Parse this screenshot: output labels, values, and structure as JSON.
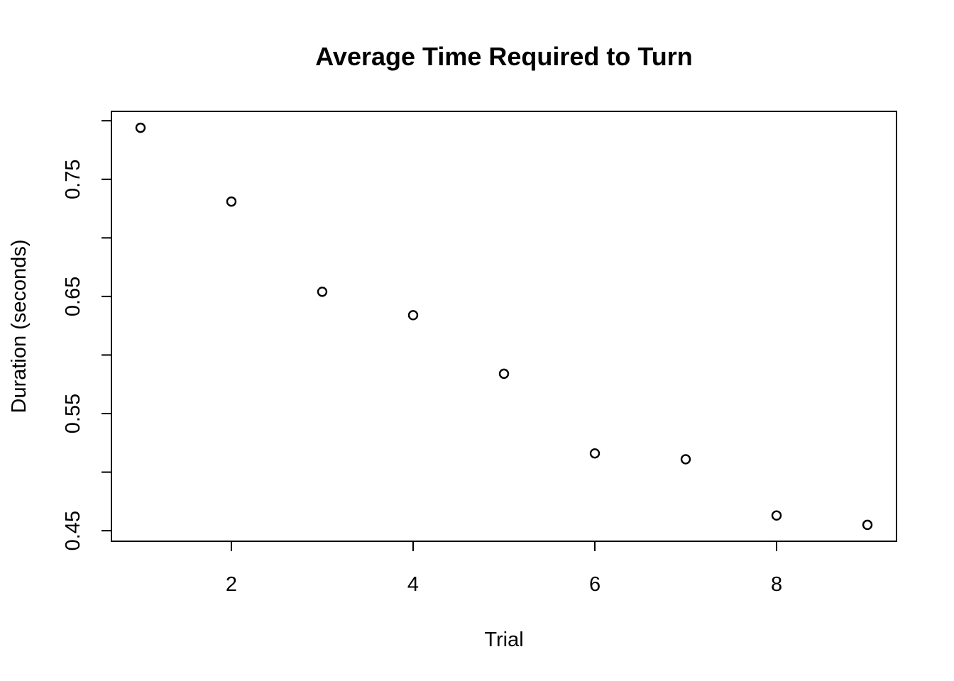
{
  "chart_data": {
    "type": "scatter",
    "title": "Average Time Required to Turn",
    "xlabel": "Trial",
    "ylabel": "Duration (seconds)",
    "x": [
      1,
      2,
      3,
      4,
      5,
      6,
      7,
      8,
      9
    ],
    "y": [
      0.794,
      0.731,
      0.654,
      0.634,
      0.584,
      0.516,
      0.511,
      0.463,
      0.455
    ],
    "xlim": [
      0.68,
      9.32
    ],
    "ylim": [
      0.441,
      0.808
    ],
    "x_ticks": [
      2,
      4,
      6,
      8
    ],
    "x_tick_labels": [
      "2",
      "4",
      "6",
      "8"
    ],
    "y_ticks": [
      0.45,
      0.5,
      0.55,
      0.6,
      0.65,
      0.7,
      0.75,
      0.8
    ],
    "y_tick_labels": [
      "0.45",
      "",
      "0.55",
      "",
      "0.65",
      "",
      "0.75",
      ""
    ],
    "grid": false,
    "marker": "open-circle",
    "color": "#000000"
  }
}
